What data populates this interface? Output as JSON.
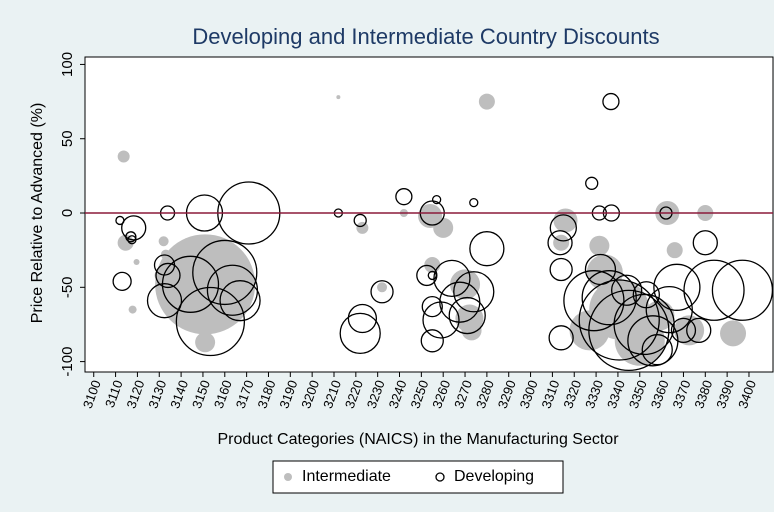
{
  "chart_data": {
    "type": "bubble",
    "title": "Developing and Intermediate Country Discounts",
    "x_label": "Product Categories (NAICS) in the Manufacturing Sector",
    "y_label": "Price Relative to Advanced (%)",
    "xlim": [
      3096,
      3411
    ],
    "ylim": [
      -107,
      105
    ],
    "xticks": [
      3100,
      3110,
      3120,
      3130,
      3140,
      3150,
      3160,
      3170,
      3180,
      3190,
      3200,
      3210,
      3220,
      3230,
      3240,
      3250,
      3260,
      3270,
      3280,
      3290,
      3300,
      3310,
      3320,
      3330,
      3340,
      3350,
      3360,
      3370,
      3380,
      3390,
      3400
    ],
    "yticks": [
      -100,
      -50,
      0,
      50,
      100
    ],
    "reference_line": 0,
    "reference_color": "#8b1a3a",
    "legend_position": "bottom",
    "series": [
      {
        "name": "Intermediate",
        "color": "#bebebe",
        "filled": true,
        "x": [
          3113.7,
          3114.6,
          3117.8,
          3119.6,
          3132,
          3133,
          3130.6,
          3151,
          3151,
          3212,
          3223,
          3232,
          3242,
          3254,
          3260,
          3280,
          3255,
          3270,
          3272,
          3273,
          3316,
          3314,
          3331.5,
          3334,
          3340.6,
          3350,
          3327,
          3362.6,
          3366,
          3380,
          3372.6,
          3392.7,
          3359
        ],
        "values": [
          38,
          -20,
          -65,
          -33,
          -19,
          -28,
          -42,
          -48,
          -87,
          78,
          -10,
          -50,
          0,
          -2,
          -10,
          75,
          -35,
          -48,
          -71,
          -79,
          -5,
          -20,
          -22,
          -40,
          -65,
          -86,
          -79,
          0,
          -25,
          0,
          -79,
          -81,
          -69
        ],
        "sizes": [
          6,
          8,
          4,
          3,
          5,
          5,
          6,
          50,
          10,
          2,
          6,
          5,
          4,
          12,
          10,
          8,
          8,
          15,
          14,
          10,
          12,
          8,
          10,
          18,
          30,
          25,
          20,
          12,
          8,
          8,
          15,
          13,
          15
        ]
      },
      {
        "name": "Developing",
        "color": "#000000",
        "filled": false,
        "x": [
          3112,
          3117,
          3118.3,
          3113,
          3117.5,
          3133.8,
          3132.4,
          3134,
          3132.4,
          3144.3,
          3150.7,
          3153.4,
          3160,
          3163.5,
          3167,
          3171,
          3212,
          3222,
          3222,
          3223,
          3232,
          3242,
          3257,
          3255,
          3252.5,
          3255,
          3255,
          3255,
          3259,
          3264,
          3267.6,
          3271,
          3274,
          3274,
          3280,
          3315,
          3313.5,
          3314,
          3314,
          3328,
          3336.8,
          3331.5,
          3337,
          3332,
          3329,
          3336,
          3340.6,
          3345,
          3352,
          3356,
          3358,
          3344,
          3353,
          3362,
          3363.5,
          3367,
          3370,
          3377,
          3380,
          3384,
          3397
        ],
        "values": [
          -5,
          -16,
          -10,
          -46,
          -18,
          0,
          -35,
          -42,
          -59,
          -48,
          0,
          -73,
          -40,
          -52,
          -59,
          0,
          0,
          -5,
          -81,
          -71,
          -53,
          11,
          9,
          0,
          -42,
          -42,
          -63,
          -86,
          -72,
          -44,
          -60,
          -69,
          -53,
          7,
          -24,
          -10,
          -20,
          -38,
          -84,
          20,
          75,
          0,
          0,
          -38,
          -59,
          -57,
          -72,
          -79,
          -75,
          -86,
          -92,
          -52,
          -55,
          0,
          -65,
          -50,
          -79,
          -79,
          -20,
          -52,
          -52
        ],
        "sizes": [
          4,
          5,
          12,
          9,
          4,
          7,
          10,
          12,
          17,
          28,
          18,
          34,
          32,
          25,
          20,
          31,
          4,
          6,
          20,
          14,
          11,
          8,
          4,
          12,
          10,
          4,
          10,
          11,
          18,
          18,
          20,
          18,
          20,
          4,
          17,
          13,
          12,
          11,
          12,
          6,
          8,
          7,
          8,
          15,
          30,
          27,
          40,
          40,
          30,
          25,
          15,
          15,
          13,
          6,
          23,
          23,
          12,
          12,
          12,
          30,
          30
        ]
      }
    ]
  }
}
